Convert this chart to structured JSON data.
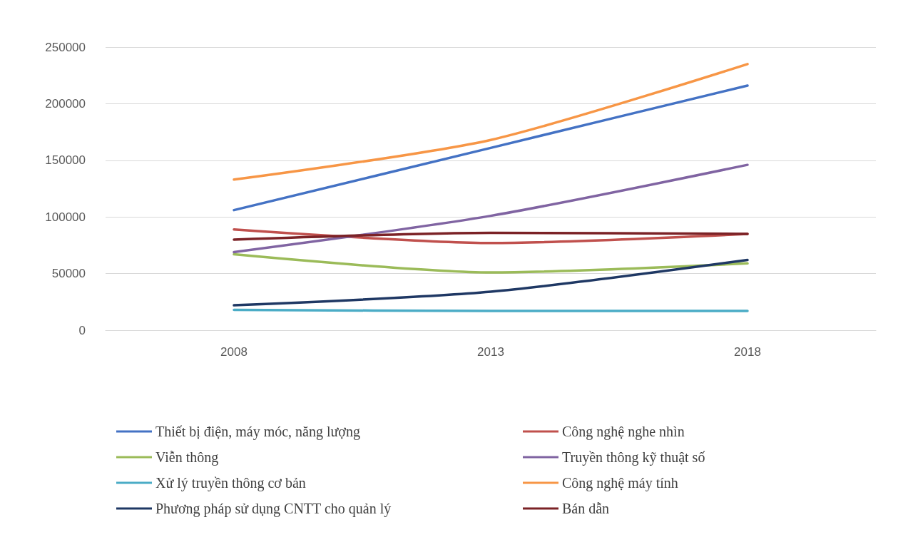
{
  "chart_data": {
    "type": "line",
    "categories": [
      "2008",
      "2013",
      "2018"
    ],
    "ylim": [
      0,
      250000
    ],
    "yticks": [
      0,
      50000,
      100000,
      150000,
      200000,
      250000
    ],
    "grid": "y",
    "legend": "bottom",
    "marker": "none",
    "line_style": "solid",
    "series": [
      {
        "name": "Thiết bị điện, máy móc, năng lượng",
        "color": "#4472c4",
        "values": [
          106000,
          161000,
          216000
        ]
      },
      {
        "name": "Công nghệ nghe nhìn",
        "color": "#c0504d",
        "values": [
          89000,
          77000,
          85000
        ]
      },
      {
        "name": "Viễn thông",
        "color": "#9bbb59",
        "values": [
          67000,
          51000,
          59000
        ]
      },
      {
        "name": "Truyền thông kỹ thuật số",
        "color": "#8064a2",
        "values": [
          69000,
          101000,
          146000
        ]
      },
      {
        "name": "Xử lý truyền thông cơ bản",
        "color": "#4bacc6",
        "values": [
          18000,
          17000,
          17000
        ]
      },
      {
        "name": "Công nghệ máy tính",
        "color": "#f79646",
        "values": [
          133000,
          168000,
          235000
        ]
      },
      {
        "name": "Phương pháp sử dụng CNTT cho quản lý",
        "color": "#1f3864",
        "values": [
          22000,
          34000,
          62000
        ]
      },
      {
        "name": "Bán dẫn",
        "color": "#7b2226",
        "values": [
          80000,
          86000,
          85000
        ]
      }
    ]
  }
}
